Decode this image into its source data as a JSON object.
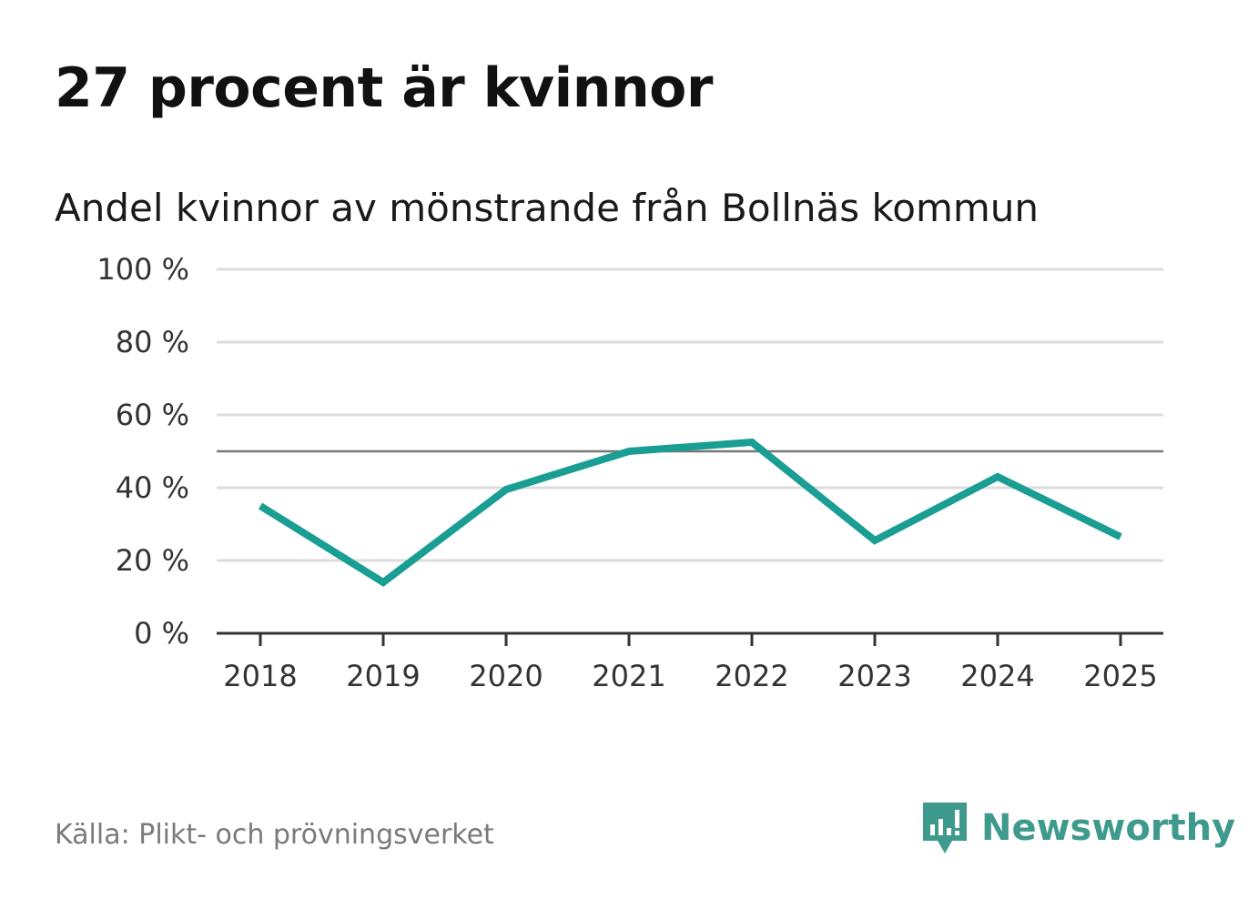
{
  "header": {
    "title": "27 procent är kvinnor",
    "subtitle": "Andel kvinnor av mönstrande från Bollnäs kommun"
  },
  "footer": {
    "source": "Källa: Plikt- och prövningsverket",
    "brand": "Newsworthy"
  },
  "colors": {
    "line": "#1a9e94",
    "grid": "#dddddd",
    "reference": "#777777",
    "axis": "#333333",
    "brand": "#3e9a8c"
  },
  "chart_data": {
    "type": "line",
    "title": "27 procent är kvinnor",
    "subtitle": "Andel kvinnor av mönstrande från Bollnäs kommun",
    "xlabel": "",
    "ylabel": "",
    "categories": [
      "2018",
      "2019",
      "2020",
      "2021",
      "2022",
      "2023",
      "2024",
      "2025"
    ],
    "series": [
      {
        "name": "Andel kvinnor",
        "values": [
          35,
          14,
          39.5,
          50,
          52.5,
          25.5,
          43,
          26.5
        ]
      }
    ],
    "ylim": [
      0,
      100
    ],
    "yticks": [
      0,
      20,
      40,
      60,
      80,
      100
    ],
    "ytick_labels": [
      "0 %",
      "20 %",
      "40 %",
      "60 %",
      "80 %",
      "100 %"
    ],
    "reference_line": 50,
    "grid": true,
    "legend": "none"
  }
}
